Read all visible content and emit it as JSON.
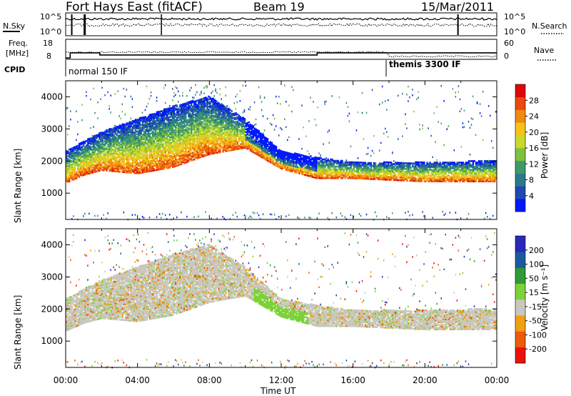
{
  "header": {
    "station": "Fort Hays East (fitACF)",
    "beam": "Beam 19",
    "date": "15/Mar/2011"
  },
  "top_panels": {
    "noise_left_label": "N.Sky",
    "noise_right_label": "N.Search",
    "noise_left_ticks": [
      "10^5",
      "10^0"
    ],
    "noise_right_ticks": [
      "10^5",
      "10^0"
    ],
    "freq_label_1": "Freq.",
    "freq_label_2": "[MHz]",
    "freq_ticks": [
      "18",
      "8"
    ],
    "nave_label": "Nave",
    "nave_ticks": [
      "60",
      "0"
    ],
    "cpid_label": "CPID",
    "cpid_1": "normal 150 IF",
    "cpid_2": "themis 3300 IF"
  },
  "colors": {
    "power": [
      "#0018ff",
      "#1f49b0",
      "#2a7a8c",
      "#3d9a6a",
      "#7fc041",
      "#c8d92c",
      "#f5c21a",
      "#f08a12",
      "#ea4a0d",
      "#e0060a"
    ],
    "velocity": [
      "#e8120a",
      "#ee5a0c",
      "#f0a010",
      "#c8c8bc",
      "#7dd13a",
      "#2f9a36",
      "#1c5aa0",
      "#2a28b8"
    ]
  },
  "chart_data": [
    {
      "type": "heatmap",
      "title": "Power",
      "xlabel": "Time UT",
      "ylabel": "Slant Range [km]",
      "colorbar_label": "Power [dB]",
      "colorbar_ticks": [
        "28",
        "24",
        "20",
        "16",
        "12",
        "8",
        "4"
      ],
      "colorbar_range": [
        0,
        32
      ],
      "x_ticks": [
        "00:00",
        "04:00",
        "08:00",
        "12:00",
        "16:00",
        "20:00",
        "00:00"
      ],
      "xlim_hours": [
        0,
        24
      ],
      "y_ticks": [
        "4000",
        "3000",
        "2000",
        "1000"
      ],
      "ylim": [
        180,
        4500
      ],
      "echo_band_lower_km": [
        [
          0,
          1300
        ],
        [
          1,
          1550
        ],
        [
          2,
          1700
        ],
        [
          4,
          1600
        ],
        [
          6,
          1800
        ],
        [
          8,
          2200
        ],
        [
          10,
          2400
        ],
        [
          12,
          1750
        ],
        [
          14,
          1450
        ],
        [
          16,
          1450
        ],
        [
          20,
          1350
        ],
        [
          24,
          1350
        ]
      ],
      "echo_band_upper_km": [
        [
          0,
          2300
        ],
        [
          1,
          2600
        ],
        [
          2,
          2900
        ],
        [
          4,
          3300
        ],
        [
          6,
          3700
        ],
        [
          8,
          4000
        ],
        [
          10,
          3300
        ],
        [
          12,
          2300
        ],
        [
          14,
          2100
        ],
        [
          16,
          1950
        ],
        [
          20,
          1950
        ],
        [
          24,
          2000
        ]
      ]
    },
    {
      "type": "heatmap",
      "title": "Velocity",
      "xlabel": "Time UT",
      "ylabel": "Slant Range [km]",
      "colorbar_label": "Velocity [m s⁻¹]",
      "colorbar_ticks": [
        "200",
        "100",
        "50",
        "15",
        "-15",
        "-50",
        "-100",
        "-200"
      ],
      "colorbar_range": [
        -250,
        250
      ],
      "x_ticks": [
        "00:00",
        "04:00",
        "08:00",
        "12:00",
        "16:00",
        "20:00",
        "00:00"
      ],
      "xlim_hours": [
        0,
        24
      ],
      "y_ticks": [
        "4000",
        "3000",
        "2000",
        "1000"
      ],
      "ylim": [
        180,
        4500
      ]
    }
  ],
  "time_label": "Time UT"
}
